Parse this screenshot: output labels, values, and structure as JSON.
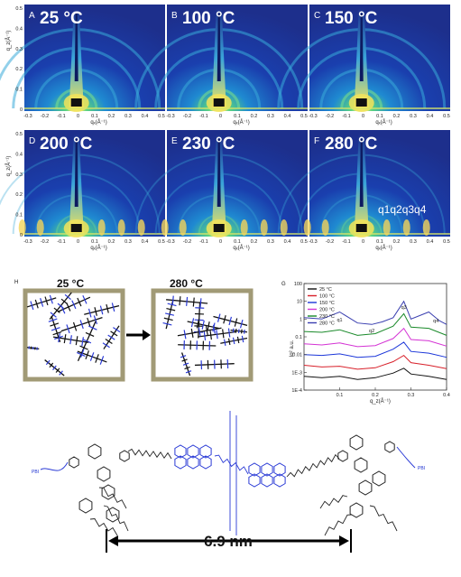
{
  "giwaxs": {
    "panels": [
      {
        "letter": "A",
        "temp": "25 °C"
      },
      {
        "letter": "B",
        "temp": "100 °C"
      },
      {
        "letter": "C",
        "temp": "150 °C"
      },
      {
        "letter": "D",
        "temp": "200 °C"
      },
      {
        "letter": "E",
        "temp": "230 °C"
      },
      {
        "letter": "F",
        "temp": "280 °C"
      }
    ],
    "xticks": [
      "-0.3",
      "-0.2",
      "-0.1",
      "0",
      "0.1",
      "0.2",
      "0.3",
      "0.4",
      "0.5"
    ],
    "yticks": [
      "0",
      "0.1",
      "0.2",
      "0.3",
      "0.4",
      "0.5"
    ],
    "xlabel": "qₓ(Å⁻¹)",
    "ylabel": "q_z(Å⁻¹)",
    "f_annotation": "q1q2q3q4"
  },
  "schematic": {
    "letter": "H",
    "left_temp": "25 °C",
    "right_temp": "280 °C"
  },
  "chart_letter": "G",
  "chart_data": {
    "type": "line",
    "title": "",
    "xlabel": "q_z(Å⁻¹)",
    "ylabel": "Iq² a.u.",
    "log_y": true,
    "xlim": [
      0.0,
      0.4
    ],
    "ylim": [
      0.0001,
      100
    ],
    "xticks": [
      "0.1",
      "0.2",
      "0.3",
      "0.4"
    ],
    "yticks": [
      "100",
      "10",
      "1",
      "0.1",
      "0.01",
      "1E-3",
      "1E-4"
    ],
    "peak_labels": [
      "q1",
      "q2",
      "q3",
      "q4"
    ],
    "series": [
      {
        "name": "25 °C",
        "color": "#111111",
        "values": [
          [
            0.0,
            0.0006
          ],
          [
            0.05,
            0.0005
          ],
          [
            0.1,
            0.0006
          ],
          [
            0.15,
            0.0004
          ],
          [
            0.2,
            0.0005
          ],
          [
            0.25,
            0.0009
          ],
          [
            0.28,
            0.0017
          ],
          [
            0.3,
            0.0008
          ],
          [
            0.35,
            0.0006
          ],
          [
            0.4,
            0.0004
          ]
        ]
      },
      {
        "name": "100 °C",
        "color": "#d8202a",
        "values": [
          [
            0.0,
            0.0025
          ],
          [
            0.05,
            0.002
          ],
          [
            0.1,
            0.0022
          ],
          [
            0.15,
            0.0015
          ],
          [
            0.2,
            0.0018
          ],
          [
            0.25,
            0.004
          ],
          [
            0.28,
            0.009
          ],
          [
            0.3,
            0.0035
          ],
          [
            0.35,
            0.0025
          ],
          [
            0.4,
            0.0016
          ]
        ]
      },
      {
        "name": "150 °C",
        "color": "#1b36d9",
        "values": [
          [
            0.0,
            0.01
          ],
          [
            0.05,
            0.009
          ],
          [
            0.1,
            0.011
          ],
          [
            0.15,
            0.007
          ],
          [
            0.2,
            0.008
          ],
          [
            0.25,
            0.02
          ],
          [
            0.28,
            0.05
          ],
          [
            0.3,
            0.015
          ],
          [
            0.35,
            0.012
          ],
          [
            0.4,
            0.007
          ]
        ]
      },
      {
        "name": "200 °C",
        "color": "#d433d4",
        "values": [
          [
            0.0,
            0.04
          ],
          [
            0.05,
            0.035
          ],
          [
            0.1,
            0.045
          ],
          [
            0.15,
            0.028
          ],
          [
            0.2,
            0.032
          ],
          [
            0.25,
            0.08
          ],
          [
            0.28,
            0.3
          ],
          [
            0.3,
            0.07
          ],
          [
            0.35,
            0.06
          ],
          [
            0.4,
            0.03
          ]
        ]
      },
      {
        "name": "230 °C",
        "color": "#1a8a2a",
        "values": [
          [
            0.0,
            0.2
          ],
          [
            0.05,
            0.18
          ],
          [
            0.1,
            0.25
          ],
          [
            0.15,
            0.12
          ],
          [
            0.2,
            0.15
          ],
          [
            0.25,
            0.4
          ],
          [
            0.28,
            2.0
          ],
          [
            0.3,
            0.35
          ],
          [
            0.35,
            0.3
          ],
          [
            0.4,
            0.12
          ]
        ]
      },
      {
        "name": "280 °C",
        "color": "#3a3fb0",
        "values": [
          [
            0.0,
            1.2
          ],
          [
            0.05,
            1.0
          ],
          [
            0.1,
            2.5
          ],
          [
            0.15,
            0.6
          ],
          [
            0.19,
            0.5
          ],
          [
            0.22,
            0.7
          ],
          [
            0.25,
            1.2
          ],
          [
            0.28,
            10
          ],
          [
            0.3,
            1.0
          ],
          [
            0.35,
            2.5
          ],
          [
            0.38,
            0.8
          ],
          [
            0.4,
            0.5
          ]
        ]
      }
    ]
  },
  "molecule": {
    "distance_label": "6.9 nm",
    "end_label": "PBI"
  }
}
